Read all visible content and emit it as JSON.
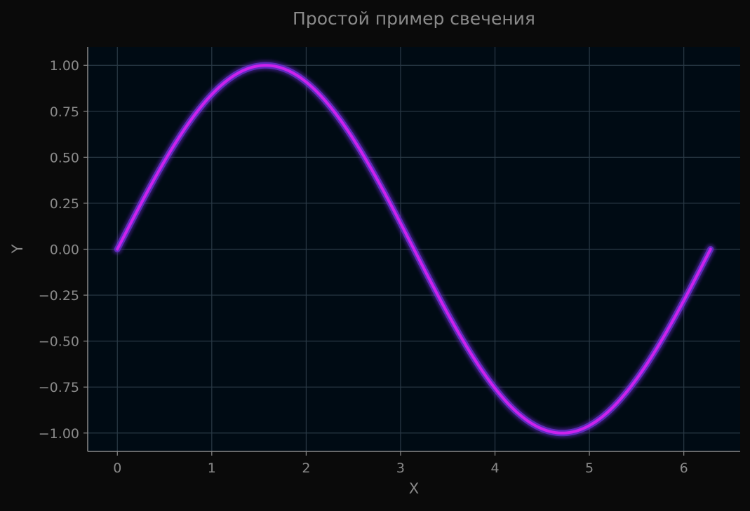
{
  "chart_data": {
    "type": "line",
    "title": "Простой пример свечения",
    "xlabel": "X",
    "ylabel": "Y",
    "xlim": [
      -0.314,
      6.597
    ],
    "ylim": [
      -1.1,
      1.1
    ],
    "x_ticks": [
      0,
      1,
      2,
      3,
      4,
      5,
      6
    ],
    "x_tick_labels": [
      "0",
      "1",
      "2",
      "3",
      "4",
      "5",
      "6"
    ],
    "y_ticks": [
      1.0,
      0.75,
      0.5,
      0.25,
      0.0,
      -0.25,
      -0.5,
      -0.75,
      -1.0
    ],
    "y_tick_labels": [
      "1.00",
      "0.75",
      "0.50",
      "0.25",
      "0.00",
      "−0.25",
      "−0.50",
      "−0.75",
      "−1.00"
    ],
    "grid": true,
    "series": [
      {
        "function": "sin(x)",
        "x_range": [
          0,
          6.2832
        ],
        "color": "#cc22ee",
        "glow_color": "#6a2fd0",
        "x": [
          0,
          0.5236,
          1.0472,
          1.5708,
          2.0944,
          2.618,
          3.1416,
          3.6652,
          4.1888,
          4.7124,
          5.236,
          5.7596,
          6.2832
        ],
        "y": [
          0,
          0.5,
          0.866,
          1.0,
          0.866,
          0.5,
          0,
          -0.5,
          -0.866,
          -1.0,
          -0.866,
          -0.5,
          0
        ]
      }
    ],
    "colors": {
      "figure_bg": "#0a0a0a",
      "axes_bg": "#000b14",
      "grid": "#2a3a46",
      "spine": "#8a8a8a",
      "text": "#8a8a8a"
    }
  }
}
